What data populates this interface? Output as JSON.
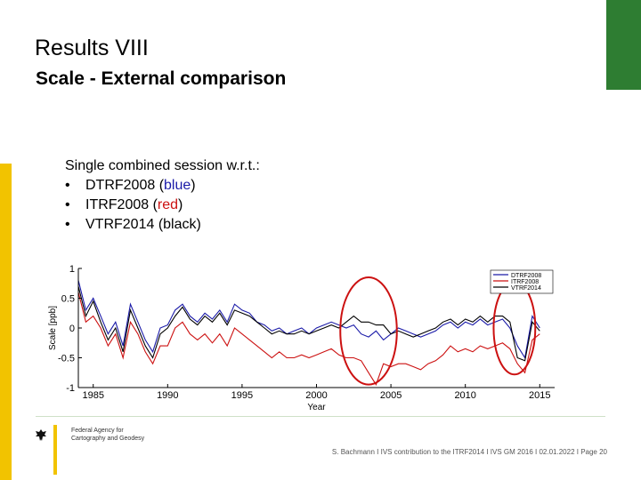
{
  "slide": {
    "title": "Results VIII",
    "subtitle": "Scale - External comparison",
    "intro": "Single combined session w.r.t.:",
    "bullet_symbol": "•",
    "bullets": [
      {
        "name": "DTRF2008",
        "open": " (",
        "color_word": "blue",
        "close": ")",
        "color": "#1a1aa8"
      },
      {
        "name": "ITRF2008",
        "open": " (",
        "color_word": "red",
        "close": ")",
        "color": "#cc1111"
      },
      {
        "name": "VTRF2014",
        "open": " (",
        "color_word": "black",
        "close": ")",
        "color": "#000000"
      }
    ],
    "footer": {
      "agency": [
        "Federal Agency for",
        "Cartography and Geodesy"
      ],
      "credit": "S. Bachmann I IVS contribution to the ITRF2014 I IVS GM 2016 I 02.01.2022 I Page 20"
    },
    "colors": {
      "accent_green": "#2e7d32",
      "accent_yellow": "#f2c300",
      "highlight_circle": "#cc1111"
    }
  },
  "chart_data": {
    "type": "line",
    "xlabel": "Year",
    "ylabel": "Scale [ppb]",
    "xlim": [
      1984,
      2016
    ],
    "ylim": [
      -1,
      1
    ],
    "xticks": [
      "1985",
      "1990",
      "1995",
      "2000",
      "2005",
      "2010",
      "2015"
    ],
    "yticks": [
      "1",
      "0.5",
      "0",
      "-0.5",
      "-1"
    ],
    "legend_position": "top-right",
    "legend": [
      "DTRF2008",
      "ITRF2008",
      "VTRF2014"
    ],
    "highlight_circles": [
      {
        "x": 2003.5,
        "y": -0.05,
        "rx_years": 1.9,
        "ry_ppb": 0.9
      },
      {
        "x": 2013.3,
        "y": 0.0,
        "rx_years": 1.4,
        "ry_ppb": 0.78
      }
    ],
    "series": [
      {
        "name": "DTRF2008",
        "color": "#1a1aa8",
        "x": [
          1984,
          1984.5,
          1985,
          1985.5,
          1986,
          1986.5,
          1987,
          1987.5,
          1988,
          1988.5,
          1989,
          1989.5,
          1990,
          1990.5,
          1991,
          1991.5,
          1992,
          1992.5,
          1993,
          1993.5,
          1994,
          1994.5,
          1995,
          1995.5,
          1996,
          1996.5,
          1997,
          1997.5,
          1998,
          1998.5,
          1999,
          1999.5,
          2000,
          2000.5,
          2001,
          2001.5,
          2002,
          2002.5,
          2003,
          2003.5,
          2004,
          2004.5,
          2005,
          2005.5,
          2006,
          2006.5,
          2007,
          2007.5,
          2008,
          2008.5,
          2009,
          2009.5,
          2010,
          2010.5,
          2011,
          2011.5,
          2012,
          2012.5,
          2013,
          2013.5,
          2014,
          2014.5,
          2015
        ],
        "y": [
          0.8,
          0.3,
          0.5,
          0.2,
          -0.1,
          0.1,
          -0.3,
          0.4,
          0.1,
          -0.2,
          -0.4,
          0.0,
          0.05,
          0.3,
          0.4,
          0.2,
          0.1,
          0.25,
          0.15,
          0.3,
          0.1,
          0.4,
          0.3,
          0.25,
          0.1,
          0.05,
          -0.05,
          0.0,
          -0.1,
          -0.05,
          0.0,
          -0.1,
          0.0,
          0.05,
          0.1,
          0.05,
          0.0,
          0.05,
          -0.1,
          -0.15,
          -0.05,
          -0.2,
          -0.1,
          0.0,
          -0.05,
          -0.1,
          -0.15,
          -0.1,
          -0.05,
          0.05,
          0.1,
          0.0,
          0.1,
          0.05,
          0.15,
          0.05,
          0.1,
          0.15,
          0.0,
          -0.3,
          -0.5,
          0.2,
          0.0
        ]
      },
      {
        "name": "ITRF2008",
        "color": "#cc1111",
        "x": [
          1984,
          1984.5,
          1985,
          1985.5,
          1986,
          1986.5,
          1987,
          1987.5,
          1988,
          1988.5,
          1989,
          1989.5,
          1990,
          1990.5,
          1991,
          1991.5,
          1992,
          1992.5,
          1993,
          1993.5,
          1994,
          1994.5,
          1995,
          1995.5,
          1996,
          1996.5,
          1997,
          1997.5,
          1998,
          1998.5,
          1999,
          1999.5,
          2000,
          2000.5,
          2001,
          2001.5,
          2002,
          2002.5,
          2003,
          2003.5,
          2004,
          2004.5,
          2005,
          2005.5,
          2006,
          2006.5,
          2007,
          2007.5,
          2008,
          2008.5,
          2009,
          2009.5,
          2010,
          2010.5,
          2011,
          2011.5,
          2012,
          2012.5,
          2013,
          2013.5,
          2014,
          2014.5,
          2015
        ],
        "y": [
          0.6,
          0.1,
          0.2,
          0.0,
          -0.3,
          -0.1,
          -0.5,
          0.1,
          -0.1,
          -0.4,
          -0.6,
          -0.3,
          -0.3,
          0.0,
          0.1,
          -0.1,
          -0.2,
          -0.1,
          -0.25,
          -0.1,
          -0.3,
          0.0,
          -0.1,
          -0.2,
          -0.3,
          -0.4,
          -0.5,
          -0.4,
          -0.5,
          -0.5,
          -0.45,
          -0.5,
          -0.45,
          -0.4,
          -0.35,
          -0.45,
          -0.5,
          -0.5,
          -0.55,
          -0.75,
          -0.95,
          -0.6,
          -0.65,
          -0.6,
          -0.6,
          -0.65,
          -0.7,
          -0.6,
          -0.55,
          -0.45,
          -0.3,
          -0.4,
          -0.35,
          -0.4,
          -0.3,
          -0.35,
          -0.3,
          -0.25,
          -0.35,
          -0.6,
          -0.75,
          -0.2,
          -0.1
        ]
      },
      {
        "name": "VTRF2014",
        "color": "#000000",
        "x": [
          1984,
          1984.5,
          1985,
          1985.5,
          1986,
          1986.5,
          1987,
          1987.5,
          1988,
          1988.5,
          1989,
          1989.5,
          1990,
          1990.5,
          1991,
          1991.5,
          1992,
          1992.5,
          1993,
          1993.5,
          1994,
          1994.5,
          1995,
          1995.5,
          1996,
          1996.5,
          1997,
          1997.5,
          1998,
          1998.5,
          1999,
          1999.5,
          2000,
          2000.5,
          2001,
          2001.5,
          2002,
          2002.5,
          2003,
          2003.5,
          2004,
          2004.5,
          2005,
          2005.5,
          2006,
          2006.5,
          2007,
          2007.5,
          2008,
          2008.5,
          2009,
          2009.5,
          2010,
          2010.5,
          2011,
          2011.5,
          2012,
          2012.5,
          2013,
          2013.5,
          2014,
          2014.5,
          2015
        ],
        "y": [
          0.7,
          0.2,
          0.45,
          0.1,
          -0.2,
          0.0,
          -0.4,
          0.3,
          0.0,
          -0.3,
          -0.5,
          -0.1,
          0.0,
          0.2,
          0.35,
          0.15,
          0.05,
          0.2,
          0.1,
          0.25,
          0.05,
          0.3,
          0.25,
          0.2,
          0.1,
          0.0,
          -0.1,
          -0.05,
          -0.1,
          -0.1,
          -0.05,
          -0.1,
          -0.05,
          0.0,
          0.05,
          0.0,
          0.1,
          0.2,
          0.1,
          0.1,
          0.05,
          0.05,
          -0.1,
          -0.05,
          -0.1,
          -0.15,
          -0.1,
          -0.05,
          0.0,
          0.1,
          0.15,
          0.05,
          0.15,
          0.1,
          0.2,
          0.1,
          0.2,
          0.2,
          0.1,
          -0.5,
          -0.55,
          0.1,
          -0.05
        ]
      }
    ]
  }
}
